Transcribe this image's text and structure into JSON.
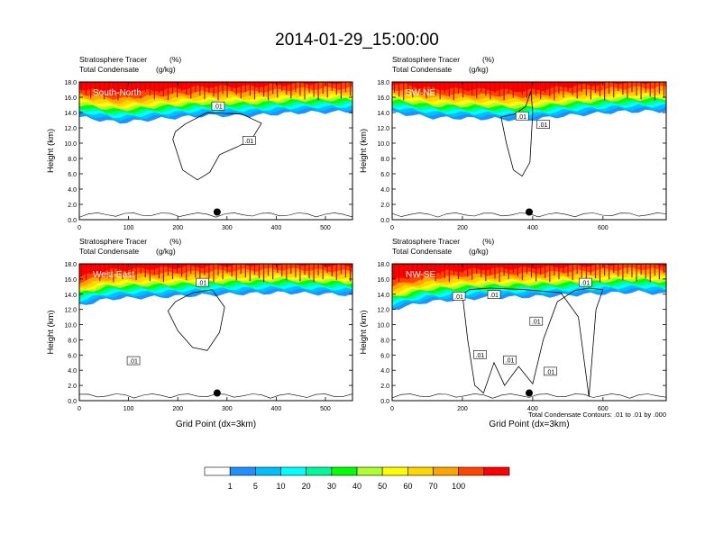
{
  "figure": {
    "title": "2014-01-29_15:00:00",
    "footnote": "Total Condensate Contours: .01 to .01 by .000"
  },
  "colors": {
    "background": "#ffffff",
    "contour": "#000000"
  },
  "chart_data": [
    {
      "type": "contour",
      "panel": "South-North",
      "label_left_1": "Stratosphere Tracer",
      "label_left_2": "Total Condensate",
      "units_1": "(%)",
      "units_2": "(g/kg)",
      "xlabel": "",
      "ylabel": "Height (km)",
      "xlim": [
        0,
        555
      ],
      "ylim": [
        0,
        18
      ],
      "x_ticks": [
        0,
        100,
        200,
        300,
        400,
        500
      ],
      "y_ticks": [
        "0.0",
        "2.0",
        "4.0",
        "6.0",
        "8.0",
        "10.0",
        "12.0",
        "14.0",
        "16.0",
        "18.0"
      ],
      "contour_label": ".01",
      "contour_label_points": [
        [
          282,
          14.8
        ],
        [
          345,
          10.3
        ]
      ],
      "marker_point": [
        280,
        1.0
      ],
      "tracer_band": [
        [
          0,
          13.4
        ],
        [
          80,
          12.7
        ],
        [
          170,
          13.2
        ],
        [
          260,
          13.6
        ],
        [
          350,
          13.6
        ],
        [
          450,
          14.0
        ],
        [
          555,
          14.1
        ]
      ],
      "cloud_outline": [
        [
          190,
          10.5
        ],
        [
          210,
          6.5
        ],
        [
          240,
          5.2
        ],
        [
          265,
          6.2
        ],
        [
          285,
          8.5
        ],
        [
          320,
          9.5
        ],
        [
          350,
          10.5
        ],
        [
          370,
          12.6
        ],
        [
          330,
          13.8
        ],
        [
          260,
          14.0
        ],
        [
          215,
          12.5
        ],
        [
          195,
          11.5
        ]
      ]
    },
    {
      "type": "contour",
      "panel": "SW-NE",
      "label_left_1": "Stratosphere Tracer",
      "label_left_2": "Total Condensate",
      "units_1": "(%)",
      "units_2": "(g/kg)",
      "xlabel": "",
      "ylabel": "Height (km)",
      "xlim": [
        0,
        780
      ],
      "ylim": [
        0,
        18
      ],
      "x_ticks": [
        0,
        200,
        400,
        600
      ],
      "y_ticks": [
        "0.0",
        "2.0",
        "4.0",
        "6.0",
        "8.0",
        "10.0",
        "12.0",
        "14.0",
        "16.0",
        "18.0"
      ],
      "contour_label": ".01",
      "contour_label_points": [
        [
          370,
          13.5
        ],
        [
          430,
          12.4
        ]
      ],
      "marker_point": [
        390,
        1.0
      ],
      "tracer_band": [
        [
          0,
          14.0
        ],
        [
          120,
          13.3
        ],
        [
          280,
          13.2
        ],
        [
          380,
          13.0
        ],
        [
          500,
          13.6
        ],
        [
          650,
          14.1
        ],
        [
          780,
          14.2
        ]
      ],
      "cloud_outline": [
        [
          310,
          13.4
        ],
        [
          325,
          10.0
        ],
        [
          345,
          6.5
        ],
        [
          370,
          5.7
        ],
        [
          392,
          7.5
        ],
        [
          400,
          14.0
        ],
        [
          395,
          16.8
        ],
        [
          380,
          14.8
        ],
        [
          350,
          13.8
        ]
      ]
    },
    {
      "type": "contour",
      "panel": "West-East",
      "label_left_1": "Stratosphere Tracer",
      "label_left_2": "Total Condensate",
      "units_1": "(%)",
      "units_2": "(g/kg)",
      "xlabel": "Grid Point (dx=3km)",
      "ylabel": "Height (km)",
      "xlim": [
        0,
        555
      ],
      "ylim": [
        0,
        18
      ],
      "x_ticks": [
        0,
        100,
        200,
        300,
        400,
        500
      ],
      "y_ticks": [
        "0.0",
        "2.0",
        "4.0",
        "6.0",
        "8.0",
        "10.0",
        "12.0",
        "14.0",
        "16.0",
        "18.0"
      ],
      "contour_label": ".01",
      "contour_label_points": [
        [
          110,
          5.2
        ],
        [
          250,
          15.5
        ]
      ],
      "marker_point": [
        280,
        1.0
      ],
      "tracer_band": [
        [
          0,
          12.5
        ],
        [
          60,
          13.4
        ],
        [
          150,
          13.6
        ],
        [
          300,
          14.0
        ],
        [
          420,
          14.2
        ],
        [
          555,
          13.9
        ]
      ],
      "cloud_outline": [
        [
          180,
          11.8
        ],
        [
          200,
          9.2
        ],
        [
          230,
          7.0
        ],
        [
          260,
          6.6
        ],
        [
          285,
          9.0
        ],
        [
          295,
          12.3
        ],
        [
          270,
          14.6
        ],
        [
          230,
          14.2
        ],
        [
          195,
          13.0
        ]
      ]
    },
    {
      "type": "contour",
      "panel": "NW-SE",
      "label_left_1": "Stratosphere Tracer",
      "label_left_2": "Total Condensate",
      "units_1": "(%)",
      "units_2": "(g/kg)",
      "xlabel": "Grid Point (dx=3km)",
      "ylabel": "Height (km)",
      "xlim": [
        0,
        780
      ],
      "ylim": [
        0,
        18
      ],
      "x_ticks": [
        0,
        200,
        400,
        600
      ],
      "y_ticks": [
        "0.0",
        "2.0",
        "4.0",
        "6.0",
        "8.0",
        "10.0",
        "12.0",
        "14.0",
        "16.0",
        "18.0"
      ],
      "contour_label": ".01",
      "contour_label_points": [
        [
          190,
          13.7
        ],
        [
          290,
          13.9
        ],
        [
          550,
          15.5
        ],
        [
          250,
          6.0
        ],
        [
          335,
          5.3
        ],
        [
          410,
          10.4
        ],
        [
          450,
          3.8
        ]
      ],
      "marker_point": [
        390,
        1.0
      ],
      "tracer_band": [
        [
          0,
          12.0
        ],
        [
          100,
          13.0
        ],
        [
          250,
          13.5
        ],
        [
          420,
          13.7
        ],
        [
          560,
          14.0
        ],
        [
          700,
          14.3
        ],
        [
          780,
          14.0
        ]
      ],
      "cloud_outline": [
        [
          200,
          14.0
        ],
        [
          215,
          8.0
        ],
        [
          235,
          2.0
        ],
        [
          260,
          1.0
        ],
        [
          290,
          5.0
        ],
        [
          320,
          2.0
        ],
        [
          360,
          4.5
        ],
        [
          400,
          2.2
        ],
        [
          430,
          8.0
        ],
        [
          470,
          13.0
        ],
        [
          520,
          14.5
        ],
        [
          560,
          14.8
        ],
        [
          600,
          14.6
        ],
        [
          580,
          12.0
        ],
        [
          560,
          0.5
        ],
        [
          530,
          11.0
        ],
        [
          480,
          14.2
        ],
        [
          380,
          14.6
        ],
        [
          280,
          14.8
        ],
        [
          220,
          14.6
        ]
      ]
    }
  ],
  "colorbar": {
    "ticks": [
      "1",
      "5",
      "10",
      "20",
      "30",
      "40",
      "50",
      "60",
      "70",
      "100"
    ],
    "colors": [
      "#ffffff",
      "#1e90ff",
      "#00bfff",
      "#00ffff",
      "#00fa9a",
      "#00ff00",
      "#adff2f",
      "#ffff00",
      "#ffd700",
      "#ffa500",
      "#ff4500",
      "#ff0000"
    ]
  }
}
